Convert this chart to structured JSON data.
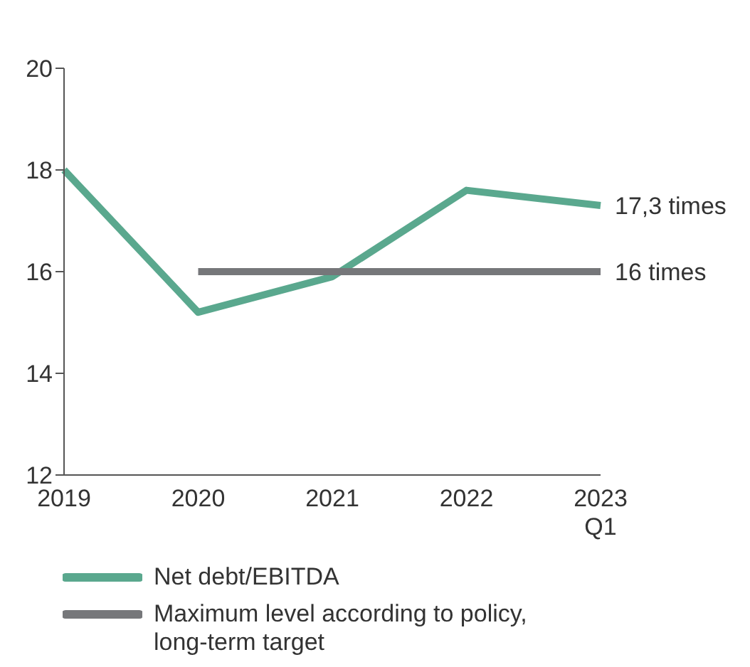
{
  "chart_data": {
    "type": "line",
    "categories": [
      "2019",
      "2020",
      "2021",
      "2022",
      "2023 Q1"
    ],
    "series": [
      {
        "name": "Net debt/EBITDA",
        "color": "#5aa88e",
        "values": [
          18,
          15.2,
          15.9,
          17.6,
          17.3
        ]
      },
      {
        "name": "Maximum level according to policy, long-term target",
        "color": "#76777a",
        "values": [
          null,
          16,
          16,
          16,
          16
        ]
      }
    ],
    "ylim": [
      12,
      20
    ],
    "yticks": [
      12,
      14,
      16,
      18,
      20
    ],
    "grid": false,
    "legend": "bottom",
    "marker": "none",
    "line_style": "solid",
    "annotations": [
      {
        "text": "17,3 times",
        "x": "2023 Q1",
        "y": 17.3
      },
      {
        "text": "16 times",
        "x": "2023 Q1",
        "y": 16
      }
    ]
  }
}
